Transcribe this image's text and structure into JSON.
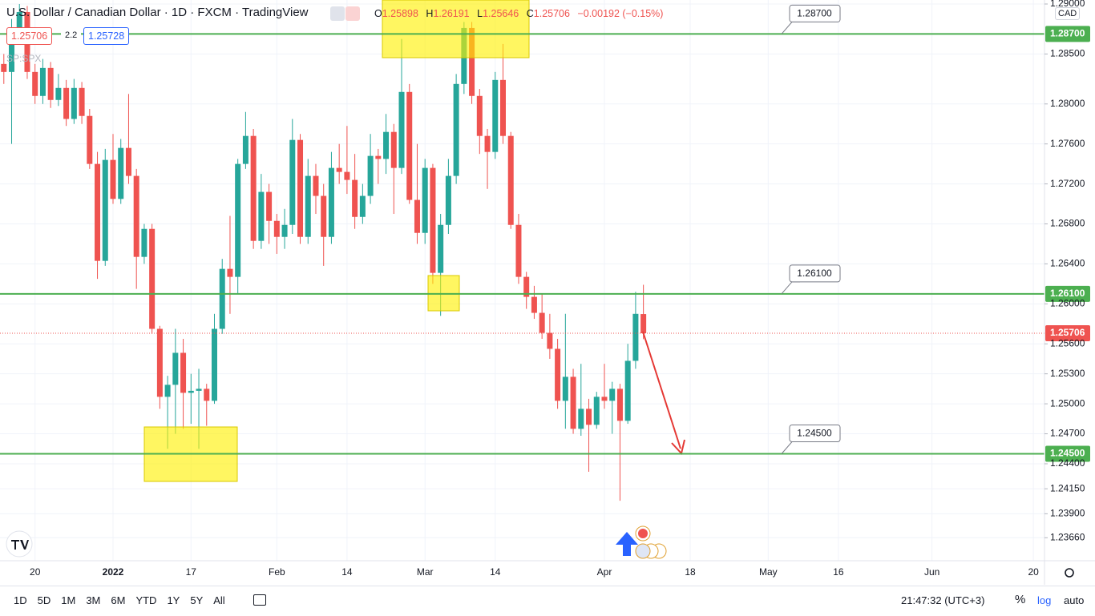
{
  "header": {
    "title": "U.S. Dollar / Canadian Dollar · 1D · FXCM · TradingView",
    "ohlc_letters": [
      "O",
      "H",
      "L",
      "C"
    ],
    "change": "−0.00192 (−0.15%)",
    "spread": "2.2",
    "ask": "1.25728",
    "overlay_symbol": "SP:SPX",
    "currency": "CAD"
  },
  "toolbar": {
    "ranges": [
      "1D",
      "5D",
      "1M",
      "3M",
      "6M",
      "YTD",
      "1Y",
      "5Y",
      "All"
    ],
    "clock": "21:47:32 (UTC+3)",
    "percent": "%",
    "log": "log",
    "auto": "auto"
  },
  "chart_data": {
    "type": "candlestick",
    "up_color": "#26a69a",
    "down_color": "#ef5350",
    "grid": true,
    "log_scale": false,
    "ylim": [
      1.2343,
      1.2904
    ],
    "yticks": [
      {
        "value": 1.29,
        "label": "1.29000"
      },
      {
        "value": 1.285,
        "label": "1.28500"
      },
      {
        "value": 1.28,
        "label": "1.28000"
      },
      {
        "value": 1.276,
        "label": "1.27600"
      },
      {
        "value": 1.272,
        "label": "1.27200"
      },
      {
        "value": 1.268,
        "label": "1.26800"
      },
      {
        "value": 1.264,
        "label": "1.26400"
      },
      {
        "value": 1.26,
        "label": "1.26000"
      },
      {
        "value": 1.256,
        "label": "1.25600"
      },
      {
        "value": 1.253,
        "label": "1.25300"
      },
      {
        "value": 1.25,
        "label": "1.25000"
      },
      {
        "value": 1.247,
        "label": "1.24700"
      },
      {
        "value": 1.244,
        "label": "1.24400"
      },
      {
        "value": 1.2415,
        "label": "1.24150"
      },
      {
        "value": 1.239,
        "label": "1.23900"
      },
      {
        "value": 1.2366,
        "label": "1.23660"
      }
    ],
    "levels": [
      {
        "value": 1.287,
        "label": "1.28700",
        "color": "#4caf50"
      },
      {
        "value": 1.261,
        "label": "1.26100",
        "color": "#4caf50"
      },
      {
        "value": 1.245,
        "label": "1.24500",
        "color": "#4caf50"
      }
    ],
    "categories": [
      null,
      null,
      null,
      null,
      null,
      "20",
      null,
      null,
      null,
      null,
      null,
      null,
      null,
      null,
      null,
      "2022",
      null,
      null,
      null,
      null,
      null,
      null,
      null,
      null,
      null,
      "17",
      null,
      null,
      null,
      null,
      null,
      null,
      null,
      null,
      null,
      null,
      "Feb",
      null,
      null,
      null,
      null,
      null,
      null,
      null,
      null,
      "14",
      null,
      null,
      null,
      null,
      null,
      null,
      null,
      null,
      null,
      "Mar",
      null,
      null,
      null,
      null,
      null,
      null,
      null,
      null,
      "14",
      null,
      null,
      null,
      null,
      null,
      null,
      null,
      null,
      null,
      null,
      null,
      null,
      null,
      "Apr",
      null,
      null,
      null,
      null,
      null,
      null,
      null,
      null,
      null,
      null,
      "18",
      null,
      null,
      null,
      null,
      null,
      null,
      null,
      null,
      null,
      "May",
      null,
      null,
      null,
      null,
      null,
      null,
      null,
      null,
      "16",
      null,
      null,
      null,
      null,
      null,
      null,
      null,
      null,
      null,
      null,
      null,
      "Jun",
      null,
      null,
      null,
      null,
      null,
      null,
      null,
      null,
      null,
      null,
      null,
      null,
      "20",
      null
    ],
    "open": [
      1.28,
      1.284,
      1.2832,
      1.2876,
      1.2892,
      1.2832,
      1.2808,
      1.2836,
      1.2804,
      1.2816,
      1.2785,
      1.2816,
      1.2788,
      1.274,
      1.2643,
      1.2744,
      1.2705,
      1.2756,
      1.2728,
      1.2647,
      1.2675,
      1.2575,
      1.2507,
      1.2519,
      1.2551,
      1.2511,
      1.2513,
      1.2515,
      1.2503,
      1.2575,
      1.2635,
      1.2627,
      1.274,
      1.2768,
      1.2663,
      1.2712,
      1.2683,
      1.2667,
      1.2679,
      1.2764,
      1.2667,
      1.2728,
      1.2708,
      1.2667,
      1.2736,
      1.2732,
      1.2724,
      1.2687,
      1.2708,
      1.2748,
      1.2745,
      1.2772,
      1.2736,
      1.2812,
      1.2704,
      1.2671,
      1.2736,
      1.2631,
      1.2679,
      1.2728,
      1.282,
      1.2876,
      1.2808,
      1.2768,
      1.2752,
      1.2824,
      1.2768,
      1.2679,
      1.2627,
      1.2607,
      1.2591,
      1.2571,
      1.2555,
      1.2503,
      1.2527,
      1.2475,
      1.2495,
      1.2479,
      1.2507,
      1.2503,
      1.2515,
      1.2483,
      1.2543,
      1.25898,
      null,
      null,
      null,
      null,
      null,
      null,
      null,
      null,
      null,
      null,
      null,
      null,
      null,
      null,
      null,
      null,
      null,
      null,
      null,
      null,
      null,
      null,
      null,
      null,
      null,
      null,
      null,
      null,
      null,
      null,
      null,
      null,
      null,
      null,
      null,
      null,
      null,
      null,
      null,
      null,
      null,
      null,
      null,
      null,
      null,
      null,
      null,
      null,
      null,
      null,
      null
    ],
    "high": [
      1.2856,
      1.285,
      1.2885,
      1.29,
      1.2898,
      1.284,
      1.2845,
      1.2842,
      1.283,
      1.2824,
      1.2825,
      1.2822,
      1.2795,
      1.2752,
      1.2755,
      1.277,
      1.2765,
      1.281,
      1.2735,
      1.268,
      1.268,
      1.2578,
      1.2528,
      1.2575,
      1.2565,
      1.253,
      1.2535,
      1.252,
      1.259,
      1.2645,
      1.2688,
      1.2745,
      1.2792,
      1.2775,
      1.273,
      1.272,
      1.269,
      1.2695,
      1.2785,
      1.277,
      1.2745,
      1.274,
      1.272,
      1.2752,
      1.276,
      1.2778,
      1.275,
      1.272,
      1.277,
      1.2755,
      1.279,
      1.278,
      1.2865,
      1.282,
      1.276,
      1.2745,
      1.274,
      1.269,
      1.2745,
      1.283,
      1.2882,
      1.2882,
      1.2815,
      1.2775,
      1.2832,
      1.286,
      1.2772,
      1.269,
      1.2632,
      1.2618,
      1.261,
      1.259,
      1.2565,
      1.259,
      1.2535,
      1.254,
      1.2505,
      1.2512,
      1.254,
      1.2522,
      1.252,
      1.256,
      1.2612,
      1.26191,
      null,
      null,
      null,
      null,
      null,
      null,
      null,
      null,
      null,
      null,
      null,
      null,
      null,
      null,
      null,
      null,
      null,
      null,
      null,
      null,
      null,
      null,
      null,
      null,
      null,
      null,
      null,
      null,
      null,
      null,
      null,
      null,
      null,
      null,
      null,
      null,
      null,
      null,
      null,
      null,
      null,
      null,
      null,
      null,
      null,
      null,
      null,
      null,
      null,
      null,
      null
    ],
    "low": [
      1.279,
      1.282,
      1.276,
      1.2865,
      1.2825,
      1.28,
      1.28,
      1.2796,
      1.2798,
      1.2778,
      1.278,
      1.278,
      1.2735,
      1.2625,
      1.2638,
      1.27,
      1.27,
      1.272,
      1.2615,
      1.264,
      1.257,
      1.2495,
      1.2455,
      1.247,
      1.2475,
      1.248,
      1.2455,
      1.2478,
      1.25,
      1.257,
      1.259,
      1.261,
      1.2735,
      1.2655,
      1.2655,
      1.266,
      1.265,
      1.2655,
      1.267,
      1.266,
      1.266,
      1.269,
      1.2638,
      1.266,
      1.272,
      1.271,
      1.2675,
      1.268,
      1.27,
      1.272,
      1.273,
      1.269,
      1.273,
      1.27,
      1.266,
      1.266,
      1.262,
      1.2588,
      1.267,
      1.272,
      1.281,
      1.28,
      1.275,
      1.2715,
      1.2745,
      1.276,
      1.2675,
      1.262,
      1.2595,
      1.2585,
      1.2565,
      1.2545,
      1.2495,
      1.2475,
      1.247,
      1.2468,
      1.2432,
      1.2475,
      1.2495,
      1.247,
      1.2403,
      1.248,
      1.2535,
      1.25646,
      null,
      null,
      null,
      null,
      null,
      null,
      null,
      null,
      null,
      null,
      null,
      null,
      null,
      null,
      null,
      null,
      null,
      null,
      null,
      null,
      null,
      null,
      null,
      null,
      null,
      null,
      null,
      null,
      null,
      null,
      null,
      null,
      null,
      null,
      null,
      null,
      null,
      null,
      null,
      null,
      null,
      null,
      null,
      null,
      null,
      null,
      null,
      null,
      null,
      null,
      null
    ],
    "close": [
      1.284,
      1.2832,
      1.2876,
      1.2892,
      1.2832,
      1.2808,
      1.2836,
      1.2804,
      1.2816,
      1.2785,
      1.2816,
      1.2788,
      1.274,
      1.2643,
      1.2744,
      1.2705,
      1.2756,
      1.2728,
      1.2647,
      1.2675,
      1.2575,
      1.2507,
      1.2519,
      1.2551,
      1.2511,
      1.2513,
      1.2515,
      1.2503,
      1.2575,
      1.2635,
      1.2627,
      1.274,
      1.2768,
      1.2663,
      1.2712,
      1.2683,
      1.2667,
      1.2679,
      1.2764,
      1.2667,
      1.2728,
      1.2708,
      1.2667,
      1.2736,
      1.2732,
      1.2724,
      1.2687,
      1.2708,
      1.2748,
      1.2745,
      1.2772,
      1.2736,
      1.2812,
      1.2704,
      1.2671,
      1.2736,
      1.2631,
      1.2679,
      1.2728,
      1.282,
      1.2876,
      1.2808,
      1.2768,
      1.2752,
      1.2824,
      1.2768,
      1.2679,
      1.2627,
      1.2607,
      1.2591,
      1.2571,
      1.2555,
      1.2503,
      1.2527,
      1.2475,
      1.2495,
      1.2479,
      1.2507,
      1.2503,
      1.2515,
      1.2483,
      1.2543,
      1.259,
      1.25706,
      null,
      null,
      null,
      null,
      null,
      null,
      null,
      null,
      null,
      null,
      null,
      null,
      null,
      null,
      null,
      null,
      null,
      null,
      null,
      null,
      null,
      null,
      null,
      null,
      null,
      null,
      null,
      null,
      null,
      null,
      null,
      null,
      null,
      null,
      null,
      null,
      null,
      null,
      null,
      null,
      null,
      null,
      null,
      null,
      null,
      null,
      null,
      null,
      null,
      null,
      null
    ]
  }
}
